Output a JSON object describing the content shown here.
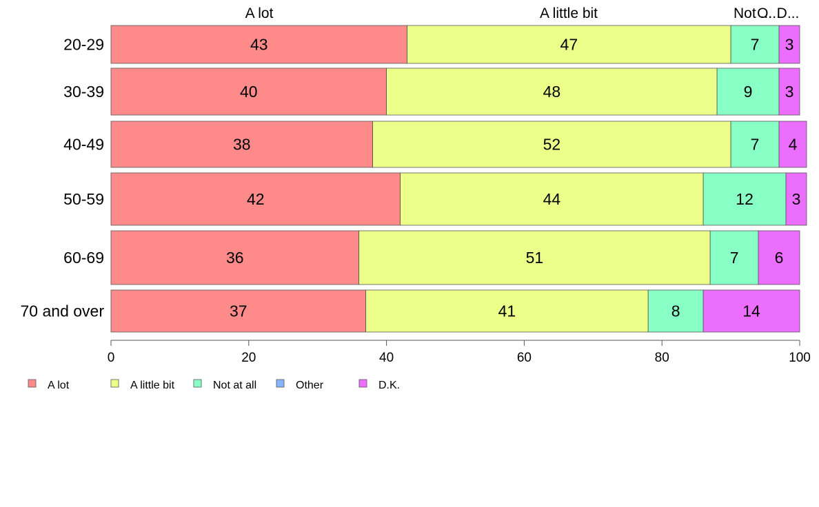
{
  "chart_data": {
    "type": "bar",
    "orientation": "horizontal",
    "stacked": true,
    "categories": [
      "20-29",
      "30-39",
      "40-49",
      "50-59",
      "60-69",
      "70 and over"
    ],
    "series": [
      {
        "name": "A lot",
        "color": "#ff8a8a",
        "values": [
          43,
          40,
          38,
          42,
          36,
          37
        ]
      },
      {
        "name": "A little bit",
        "color": "#ecff88",
        "values": [
          47,
          48,
          52,
          44,
          51,
          41
        ]
      },
      {
        "name": "Not at all",
        "color": "#88ffc4",
        "values": [
          7,
          9,
          7,
          12,
          7,
          8
        ]
      },
      {
        "name": "Other",
        "color": "#88b4ff",
        "values": [
          0,
          0,
          0,
          0,
          0,
          0
        ]
      },
      {
        "name": "D.K.",
        "color": "#ec6eff",
        "values": [
          3,
          3,
          4,
          3,
          6,
          14
        ]
      }
    ],
    "top_labels": [
      "A lot",
      "A little bit",
      "Not ...",
      "O...",
      "D..."
    ],
    "xlim": [
      0,
      100
    ],
    "xticks": [
      0,
      20,
      40,
      60,
      80,
      100
    ],
    "grid": false,
    "legend_position": "bottom-left"
  }
}
